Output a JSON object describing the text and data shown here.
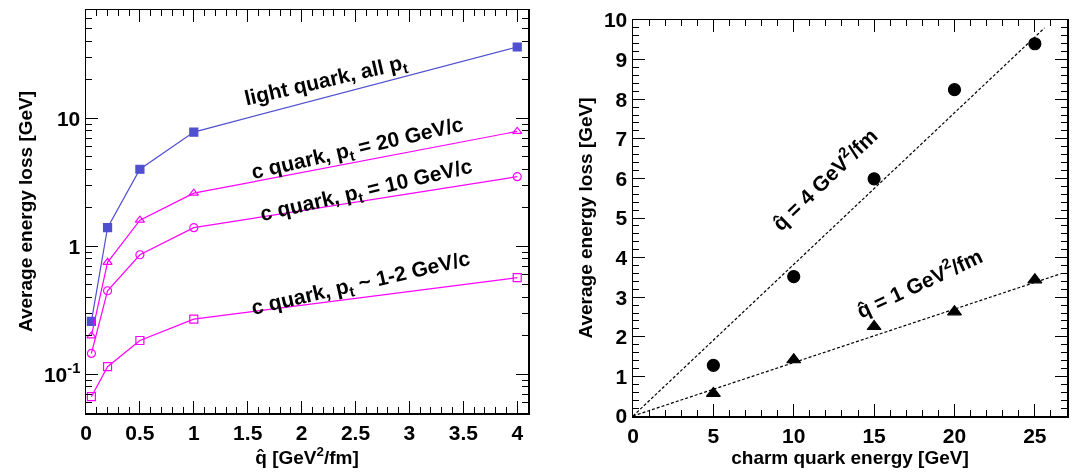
{
  "chart_data": [
    {
      "type": "line",
      "xlabel": "q̂ [GeV$^{2}$/fm]",
      "ylabel": "Average energy loss [GeV]",
      "log": "y",
      "grid": false,
      "legend": false,
      "x": [
        0.05,
        0.2,
        0.5,
        1,
        4
      ],
      "xlim": [
        0,
        4.1
      ],
      "xticks": [
        0,
        0.5,
        1,
        1.5,
        2,
        2.5,
        3,
        3.5,
        4
      ],
      "ylim": [
        0.05,
        70
      ],
      "yticks": [
        {
          "value": 0.1,
          "label": "10$^{-1}$"
        },
        1,
        10
      ],
      "series": [
        {
          "name": "light quark, all p$_{t}$",
          "color": "#4f4fd0",
          "marker": "square",
          "values": [
            0.26,
            1.4,
            4.0,
            7.8,
            36
          ]
        },
        {
          "name": "c quark, p$_{t}$ = 20 GeV/c",
          "color": "#ff00ff",
          "marker": "triangle",
          "values": [
            0.2,
            0.75,
            1.6,
            2.6,
            7.9
          ]
        },
        {
          "name": "c quark, p$_{t}$ = 10 GeV/c",
          "color": "#ff00ff",
          "marker": "circle",
          "values": [
            0.146,
            0.45,
            0.86,
            1.4,
            3.5
          ]
        },
        {
          "name": "c quark, p$_{t}$ ~ 1-2 GeV/c",
          "color": "#ff00ff",
          "marker": "square",
          "values": [
            0.067,
            0.115,
            0.184,
            0.27,
            0.57
          ]
        }
      ]
    },
    {
      "type": "scatter",
      "xlabel": "charm quark energy [GeV]",
      "ylabel": "Average energy loss [GeV]",
      "grid": false,
      "legend": false,
      "x": [
        5,
        10,
        15,
        20,
        25
      ],
      "xlim": [
        0,
        27
      ],
      "xticks": [
        0,
        5,
        10,
        15,
        20,
        25
      ],
      "ylim": [
        0,
        10
      ],
      "yticks": [
        0,
        1,
        2,
        3,
        4,
        5,
        6,
        7,
        8,
        9,
        10
      ],
      "series": [
        {
          "color": "#000000",
          "marker": "circle",
          "values": [
            1.28,
            3.52,
            5.99,
            8.24,
            9.4
          ]
        },
        {
          "color": "#000000",
          "marker": "triangle",
          "values": [
            0.57,
            1.42,
            2.26,
            2.63,
            3.44
          ]
        },
        {
          "type": "line",
          "name": "q̂ = 4 GeV$^{2}$/fm",
          "color": "#000000",
          "marker": "none",
          "line_style": "dashed",
          "x": [
            0,
            25.6
          ],
          "values": [
            0,
            9.8
          ]
        },
        {
          "type": "line",
          "name": "q̂ = 1 GeV$^{2}$/fm",
          "color": "#000000",
          "marker": "none",
          "line_style": "dashed",
          "x": [
            0,
            26.6
          ],
          "values": [
            0,
            3.59
          ]
        }
      ]
    }
  ]
}
